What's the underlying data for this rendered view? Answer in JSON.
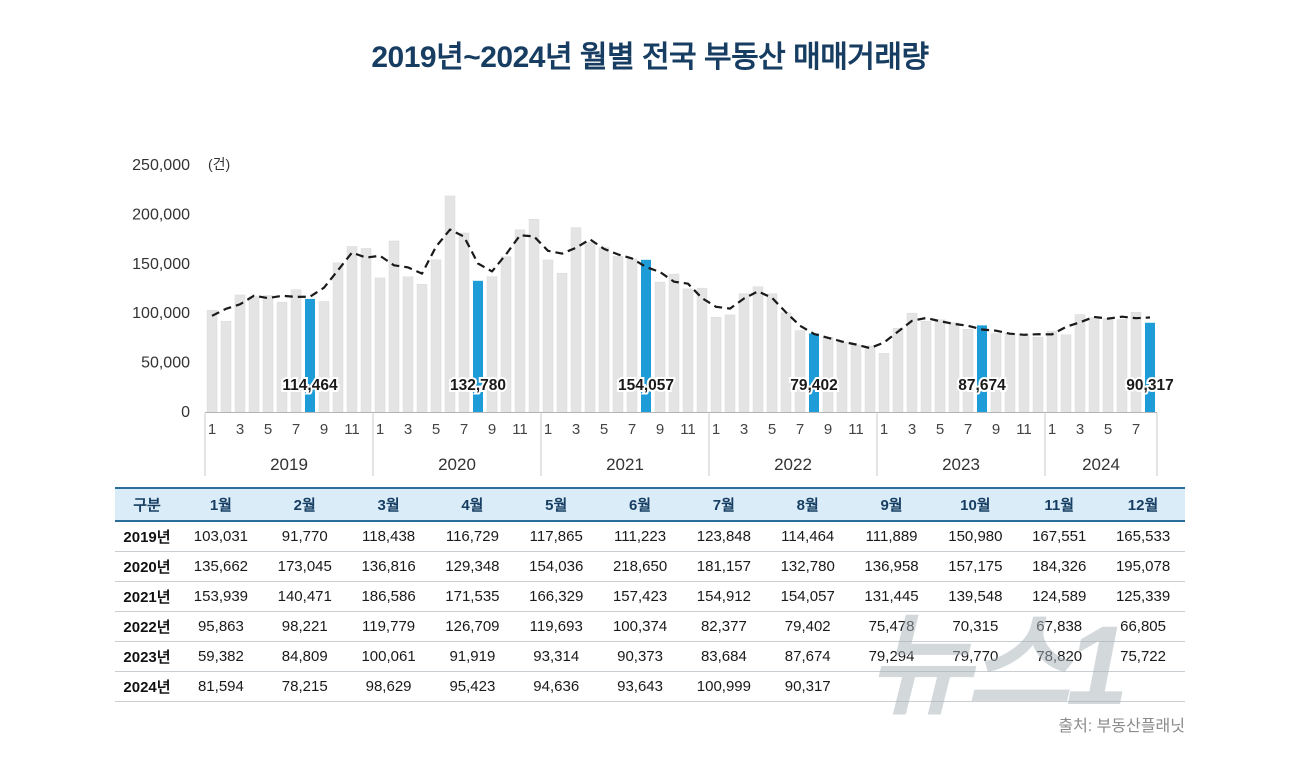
{
  "title": "2019년~2024년 월별 전국 부동산 매매거래량",
  "source": "출처: 부동산플래닛",
  "watermark": "뉴스1",
  "chart_data": {
    "type": "bar",
    "title": "2019년~2024년 월별 전국 부동산 매매거래량",
    "unit_label": "(건)",
    "ylim": [
      0,
      250000
    ],
    "yticks": [
      250000,
      200000,
      150000,
      100000,
      50000,
      0
    ],
    "month_tick_labels": [
      1,
      3,
      5,
      7,
      9,
      11
    ],
    "highlight_month": 8,
    "bar_color": "#e4e4e4",
    "highlight_color": "#1e9cd7",
    "line_color": "#1a1a1a",
    "line_style": "dashed trend (moving average of monthly values)",
    "legend": "none",
    "grid": "off",
    "series": [
      {
        "year": "2019",
        "label": "2019년",
        "values": [
          103031,
          91770,
          118438,
          116729,
          117865,
          111223,
          123848,
          114464,
          111889,
          150980,
          167551,
          165533
        ]
      },
      {
        "year": "2020",
        "label": "2020년",
        "values": [
          135662,
          173045,
          136816,
          129348,
          154036,
          218650,
          181157,
          132780,
          136958,
          157175,
          184326,
          195078
        ]
      },
      {
        "year": "2021",
        "label": "2021년",
        "values": [
          153939,
          140471,
          186586,
          171535,
          166329,
          157423,
          154912,
          154057,
          131445,
          139548,
          124589,
          125339
        ]
      },
      {
        "year": "2022",
        "label": "2022년",
        "values": [
          95863,
          98221,
          119779,
          126709,
          119693,
          100374,
          82377,
          79402,
          75478,
          70315,
          67838,
          66805
        ]
      },
      {
        "year": "2023",
        "label": "2023년",
        "values": [
          59382,
          84809,
          100061,
          91919,
          93314,
          90373,
          83684,
          87674,
          79294,
          79770,
          78820,
          75722
        ]
      },
      {
        "year": "2024",
        "label": "2024년",
        "values": [
          81594,
          78215,
          98629,
          95423,
          94636,
          93643,
          100999,
          90317
        ]
      }
    ],
    "highlight_labels": [
      "114,464",
      "132,780",
      "154,057",
      "79,402",
      "87,674",
      "90,317"
    ]
  },
  "table": {
    "headers": [
      "구분",
      "1월",
      "2월",
      "3월",
      "4월",
      "5월",
      "6월",
      "7월",
      "8월",
      "9월",
      "10월",
      "11월",
      "12월"
    ]
  }
}
